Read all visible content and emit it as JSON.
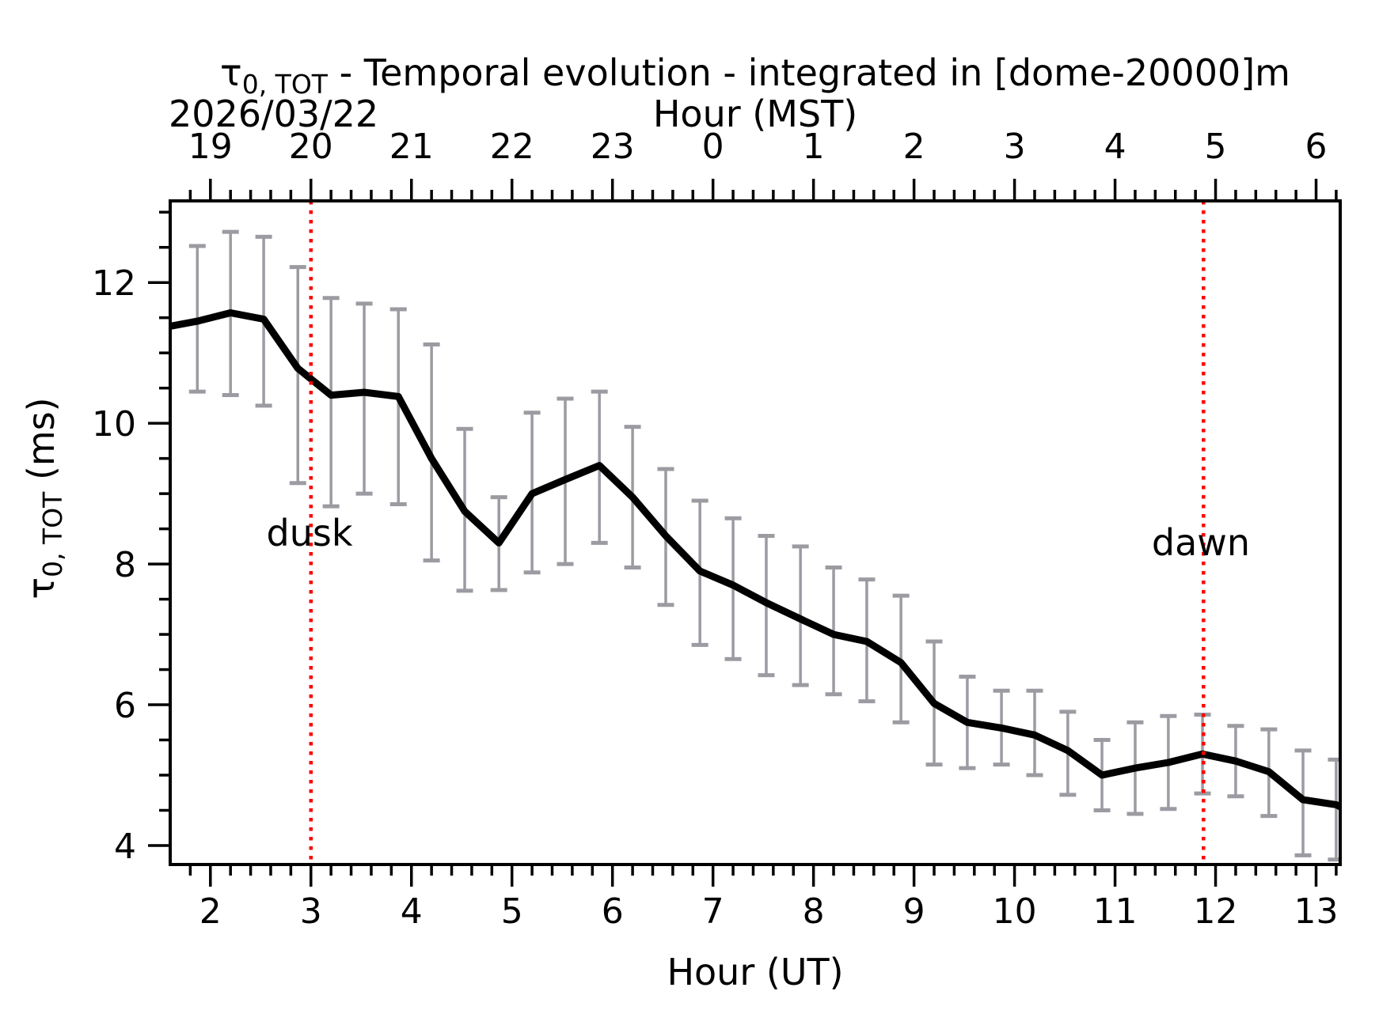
{
  "figure": {
    "title_tau": "τ",
    "title_sub": "0, TOT",
    "title_rest": " - Temporal evolution - integrated in [dome-20000]m",
    "date_label": "2026/03/22",
    "top_axis_label": "Hour (MST)",
    "bottom_axis_label": "Hour (UT)",
    "ylabel_tau": "τ",
    "ylabel_sub": "0, TOT",
    "ylabel_units": " (ms)",
    "dusk_label": "dusk",
    "dawn_label": "dawn",
    "colors": {
      "line": "#000000",
      "error_bar": "#9b9ba2",
      "annotation": "#ff0000",
      "axis": "#000000",
      "background": "#ffffff"
    }
  },
  "chart_data": {
    "type": "line",
    "title": "τ0,TOT - Temporal evolution - integrated in [dome-20000]m",
    "xlabel": "Hour (UT)",
    "ylabel": "τ0,TOT (ms)",
    "top_xlabel": "Hour (MST)",
    "date": "2026/03/22",
    "grid": false,
    "legend": false,
    "xlim": [
      1.6,
      13.24
    ],
    "ylim": [
      3.73,
      13.16
    ],
    "x_major_ticks": [
      2,
      3,
      4,
      5,
      6,
      7,
      8,
      9,
      10,
      11,
      12,
      13
    ],
    "top_tick_labels": [
      "19",
      "20",
      "21",
      "22",
      "23",
      "0",
      "1",
      "2",
      "3",
      "4",
      "5",
      "6"
    ],
    "x_minor_step": 0.2,
    "y_major_ticks": [
      4,
      6,
      8,
      10,
      12
    ],
    "y_minor_step": 0.5,
    "x": [
      1.87,
      2.2,
      2.53,
      2.87,
      3.2,
      3.53,
      3.87,
      4.2,
      4.53,
      4.87,
      5.2,
      5.53,
      5.87,
      6.2,
      6.53,
      6.87,
      7.2,
      7.53,
      7.87,
      8.2,
      8.53,
      8.87,
      9.2,
      9.53,
      9.87,
      10.2,
      10.53,
      10.87,
      11.2,
      11.53,
      11.87,
      12.2,
      12.53,
      12.87,
      13.2
    ],
    "values": [
      11.45,
      11.57,
      11.48,
      10.78,
      10.4,
      10.44,
      10.38,
      9.5,
      8.75,
      8.3,
      9.0,
      9.2,
      9.4,
      8.95,
      8.4,
      7.9,
      7.7,
      7.45,
      7.22,
      7.0,
      6.9,
      6.6,
      6.02,
      5.75,
      5.67,
      5.57,
      5.35,
      5.0,
      5.1,
      5.18,
      5.3,
      5.2,
      5.05,
      4.65,
      4.58
    ],
    "err_low": [
      10.45,
      10.4,
      10.25,
      9.15,
      8.82,
      9.0,
      8.85,
      8.05,
      7.62,
      7.63,
      7.88,
      8.0,
      8.3,
      7.95,
      7.42,
      6.85,
      6.65,
      6.42,
      6.28,
      6.15,
      6.05,
      5.75,
      5.15,
      5.1,
      5.15,
      5.0,
      4.72,
      4.5,
      4.45,
      4.52,
      4.74,
      4.7,
      4.42,
      3.86,
      3.8
    ],
    "err_high": [
      12.52,
      12.72,
      12.65,
      12.22,
      11.78,
      11.7,
      11.62,
      11.12,
      9.92,
      8.95,
      10.15,
      10.35,
      10.45,
      9.95,
      9.35,
      8.9,
      8.65,
      8.4,
      8.25,
      7.95,
      7.78,
      7.55,
      6.9,
      6.4,
      6.2,
      6.2,
      5.9,
      5.5,
      5.75,
      5.84,
      5.86,
      5.7,
      5.65,
      5.35,
      5.22
    ],
    "edge_start": {
      "x": 1.6,
      "y": 11.38
    },
    "edge_end": {
      "x": 13.24,
      "y": 4.55
    },
    "annotations": [
      {
        "label": "dusk",
        "x": 3.0
      },
      {
        "label": "dawn",
        "x": 11.88
      }
    ]
  }
}
